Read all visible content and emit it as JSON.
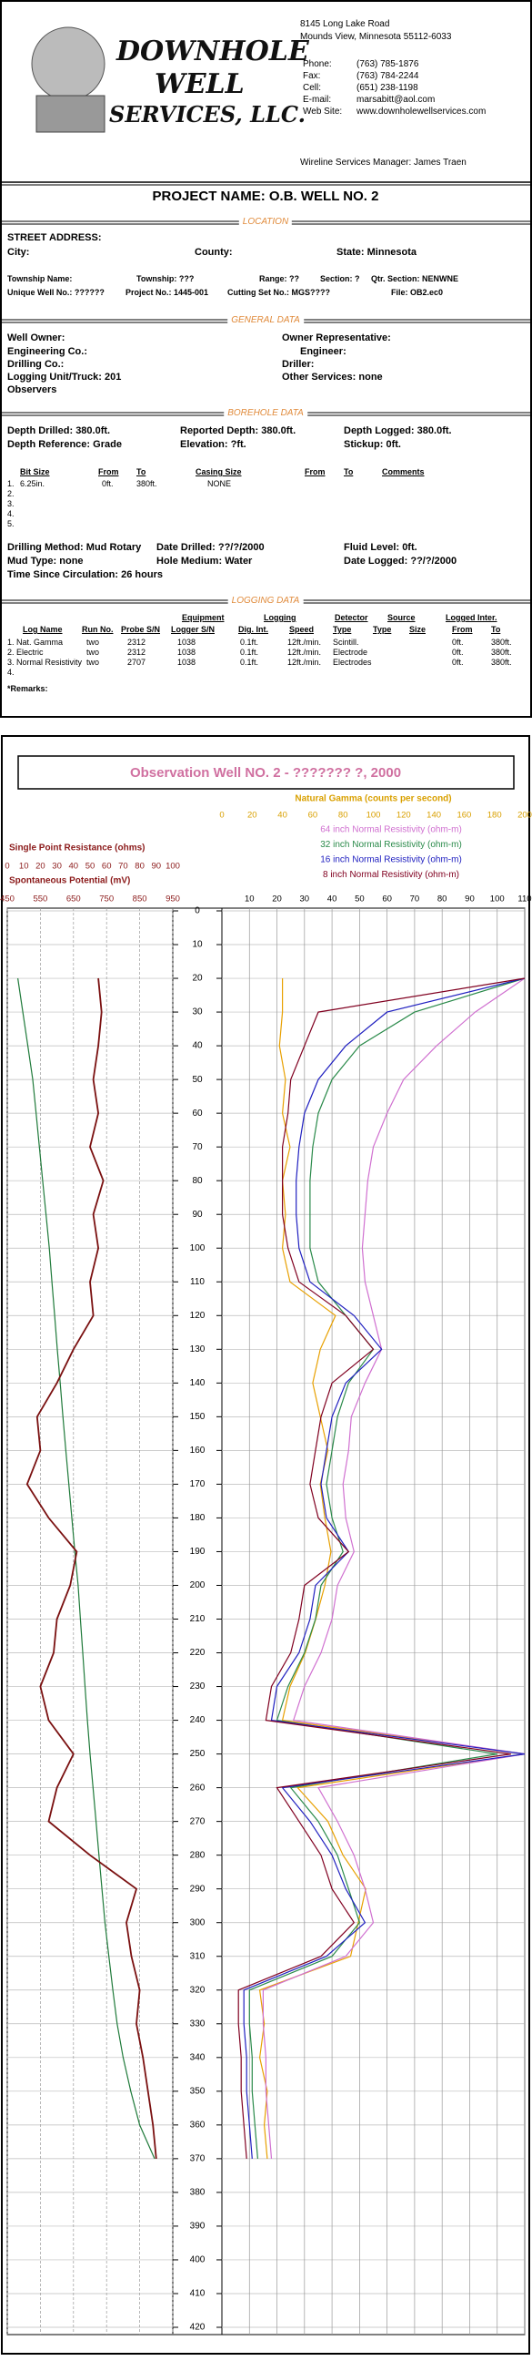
{
  "company": {
    "logo": [
      "DOWNHOLE",
      "WELL",
      "SERVICES, LLC."
    ],
    "address": [
      "8145 Long Lake Road",
      "Mounds View, Minnesota  55112-6033"
    ],
    "contacts": [
      {
        "label": "Phone:",
        "value": "(763) 785-1876"
      },
      {
        "label": "Fax:",
        "value": "(763) 784-2244"
      },
      {
        "label": "Cell:",
        "value": "(651) 238-1198"
      },
      {
        "label": "E-mail:",
        "value": "marsabitt@aol.com"
      },
      {
        "label": "Web Site:",
        "value": "www.downholewellservices.com"
      }
    ],
    "manager": "Wireline Services Manager: James Traen"
  },
  "project": {
    "label": "PROJECT NAME:",
    "value": "O.B. WELL NO. 2"
  },
  "location": {
    "heading": "LOCATION",
    "street": "STREET ADDRESS:",
    "city": "City:",
    "county": "County:",
    "state": {
      "label": "State:",
      "value": "Minnesota"
    },
    "township_name": "Township Name:",
    "township": {
      "label": "Township:",
      "value": "???"
    },
    "range": {
      "label": "Range:",
      "value": "??"
    },
    "section": {
      "label": "Section:",
      "value": "?"
    },
    "qtr_section": {
      "label": "Qtr. Section:",
      "value": "NENWNE"
    },
    "unique_well": {
      "label": "Unique Well No.:",
      "value": "??????"
    },
    "project_no": {
      "label": "Project No.:",
      "value": "1445-001"
    },
    "cutting_set": {
      "label": "Cutting Set No.:",
      "value": "MGS????"
    },
    "file": {
      "label": "File:",
      "value": "OB2.ec0"
    }
  },
  "general": {
    "heading": "GENERAL DATA",
    "owner": "Well Owner:",
    "owner_rep": "Owner Representative:",
    "engineering": "Engineering Co.:",
    "engineer": "Engineer:",
    "drilling": "Drilling Co.:",
    "driller": "Driller:",
    "unit": {
      "label": "Logging Unit/Truck:",
      "value": "201"
    },
    "other": {
      "label": "Other Services:",
      "value": "none"
    },
    "observers": "Observers"
  },
  "borehole": {
    "heading": "BOREHOLE DATA",
    "depth_drilled": {
      "label": "Depth Drilled:",
      "value": "380.0ft."
    },
    "reported_depth": {
      "label": "Reported Depth:",
      "value": "380.0ft."
    },
    "depth_logged": {
      "label": "Depth Logged:",
      "value": "380.0ft."
    },
    "reference": {
      "label": "Depth Reference:",
      "value": "Grade"
    },
    "elevation": {
      "label": "Elevation:",
      "value": "?ft."
    },
    "stickup": {
      "label": "Stickup:",
      "value": "0ft."
    },
    "bit_table": {
      "columns": [
        "Bit Size",
        "From",
        "To",
        "Casing Size",
        "From",
        "To",
        "Comments"
      ],
      "rows": [
        {
          "n": "1.",
          "bit": "6.25in.",
          "from": "0ft.",
          "to": "380ft.",
          "casing": "NONE"
        },
        {
          "n": "2."
        },
        {
          "n": "3."
        },
        {
          "n": "4."
        },
        {
          "n": "5."
        }
      ]
    },
    "method": {
      "label": "Drilling Method:",
      "value": "Mud Rotary"
    },
    "date_drilled": {
      "label": "Date Drilled:",
      "value": "??/?/2000"
    },
    "fluid": {
      "label": "Fluid Level:",
      "value": "0ft."
    },
    "mud": {
      "label": "Mud Type:",
      "value": "none"
    },
    "medium": {
      "label": "Hole Medium:",
      "value": "Water"
    },
    "date_logged": {
      "label": "Date Logged:",
      "value": "??/?/2000"
    },
    "circulation": {
      "label": "Time Since Circulation:",
      "value": "26 hours"
    }
  },
  "logging": {
    "heading": "LOGGING DATA",
    "groups": [
      "Equipment",
      "Logging",
      "Detector",
      "Source",
      "Logged Inter."
    ],
    "columns": [
      "Log Name",
      "Run No.",
      "Probe S/N",
      "Logger S/N",
      "Dig. Int.",
      "Speed",
      "Type",
      "Type",
      "Size",
      "From",
      "To"
    ],
    "rows": [
      {
        "name": "1. Nat. Gamma",
        "run": "two",
        "probe": "2312",
        "logger": "1038",
        "dig": "0.1ft.",
        "speed": "12ft./min.",
        "detector": "Scintill.",
        "from": "0ft.",
        "to": "380ft."
      },
      {
        "name": "2. Electric",
        "run": "two",
        "probe": "2312",
        "logger": "1038",
        "dig": "0.1ft.",
        "speed": "12ft./min.",
        "detector": "Electrode",
        "from": "0ft.",
        "to": "380ft."
      },
      {
        "name": "3. Normal Resistivity",
        "run": "two",
        "probe": "2707",
        "logger": "1038",
        "dig": "0.1ft.",
        "speed": "12ft./min.",
        "detector": "Electrodes",
        "from": "0ft.",
        "to": "380ft."
      },
      {
        "name": "4."
      }
    ],
    "remarks": "*Remarks:"
  },
  "chart_data": {
    "type": "well-log",
    "title": "Observation Well NO. 2 - ??????? ?, 2000",
    "x": [
      20,
      30,
      40,
      50,
      60,
      70,
      80,
      90,
      100,
      110,
      120,
      130,
      140,
      150,
      160,
      170,
      180,
      190,
      200,
      210,
      220,
      230,
      240,
      250,
      260,
      270,
      280,
      290,
      300,
      310,
      320,
      330,
      340,
      350,
      360,
      370,
      380
    ],
    "xlim": [
      0,
      420
    ],
    "xticks": [
      0,
      10,
      20,
      30,
      40,
      50,
      60,
      70,
      80,
      90,
      100,
      110,
      120,
      130,
      140,
      150,
      160,
      170,
      180,
      190,
      200,
      210,
      220,
      230,
      240,
      250,
      260,
      270,
      280,
      290,
      300,
      310,
      320,
      330,
      340,
      350,
      360,
      370,
      380,
      390,
      400,
      410,
      420
    ],
    "grid": true,
    "axes": [
      {
        "label": "Spontaneous Potential (mV)",
        "color": "#8b1a1a",
        "lim": [
          450,
          950
        ],
        "ticks": [
          450,
          550,
          650,
          750,
          850,
          950
        ],
        "track": "left"
      },
      {
        "label": "Single Point Resistance (ohms)",
        "color": "#8b1a1a",
        "lim": [
          0,
          100
        ],
        "ticks": [
          0,
          10,
          20,
          30,
          40,
          50,
          60,
          70,
          80,
          90,
          100
        ],
        "track": "left"
      },
      {
        "label": "Natural Gamma (counts per second)",
        "color": "#d9a000",
        "lim": [
          0,
          200
        ],
        "ticks": [
          0,
          20,
          40,
          60,
          80,
          100,
          120,
          140,
          160,
          180,
          200
        ],
        "track": "right"
      },
      {
        "lim": [
          0,
          110
        ],
        "ticks": [
          10,
          20,
          30,
          40,
          50,
          60,
          70,
          80,
          90,
          100,
          110
        ],
        "track": "right"
      }
    ],
    "series": [
      {
        "axis": 0,
        "color": "#1f7a3a",
        "values": [
          482,
          497,
          512,
          527,
          537,
          547,
          557,
          567,
          577,
          585,
          593,
          601,
          610,
          618,
          627,
          636,
          645,
          654,
          664,
          671,
          678,
          685,
          692,
          700,
          709,
          718,
          727,
          736,
          745,
          757,
          769,
          782,
          800,
          823,
          850,
          895,
          null
        ]
      },
      {
        "axis": 1,
        "color": "#7a1010",
        "values": [
          55,
          57,
          55,
          52,
          55,
          50,
          58,
          52,
          55,
          50,
          52,
          40,
          30,
          18,
          20,
          12,
          25,
          42,
          38,
          30,
          28,
          20,
          25,
          40,
          30,
          25,
          50,
          78,
          72,
          75,
          80,
          78,
          82,
          85,
          88,
          90,
          null
        ]
      },
      {
        "axis": 2,
        "color": "#e8a000",
        "values": [
          40,
          40,
          38,
          42,
          40,
          45,
          40,
          42,
          40,
          45,
          75,
          65,
          60,
          65,
          70,
          65,
          68,
          72,
          68,
          62,
          55,
          45,
          40,
          200,
          50,
          70,
          80,
          95,
          90,
          85,
          25,
          28,
          25,
          30,
          28,
          30,
          null
        ]
      },
      {
        "axis": 3,
        "name": "64 inch Normal Resistivity (ohm-m)",
        "color": "#d070d0",
        "values": [
          110,
          92,
          78,
          66,
          60,
          55,
          53,
          52,
          51,
          52,
          55,
          58,
          52,
          47,
          46,
          44,
          45,
          48,
          42,
          40,
          36,
          30,
          26,
          110,
          35,
          42,
          48,
          52,
          55,
          45,
          15,
          15,
          16,
          16,
          17,
          18,
          null
        ]
      },
      {
        "axis": 3,
        "name": "32 inch Normal Resistivity (ohm-m)",
        "color": "#2a8a4a",
        "values": [
          110,
          70,
          50,
          40,
          35,
          33,
          32,
          32,
          32,
          35,
          45,
          55,
          46,
          42,
          40,
          38,
          40,
          44,
          36,
          34,
          30,
          24,
          20,
          100,
          25,
          35,
          42,
          46,
          50,
          40,
          10,
          10,
          11,
          11,
          12,
          13,
          null
        ]
      },
      {
        "axis": 3,
        "name": "16 inch Normal Resistivity (ohm-m)",
        "color": "#2020c0",
        "values": [
          110,
          60,
          45,
          35,
          30,
          28,
          27,
          27,
          28,
          32,
          48,
          58,
          45,
          40,
          38,
          36,
          38,
          46,
          34,
          32,
          28,
          20,
          18,
          110,
          22,
          32,
          40,
          45,
          52,
          38,
          8,
          8,
          9,
          9,
          10,
          11,
          null
        ]
      },
      {
        "axis": 3,
        "name": "8 inch Normal Resistivity (ohm-m)",
        "color": "#800020",
        "values": [
          110,
          35,
          30,
          25,
          24,
          22,
          22,
          22,
          24,
          28,
          45,
          55,
          40,
          36,
          34,
          32,
          35,
          46,
          30,
          28,
          25,
          18,
          16,
          105,
          20,
          28,
          36,
          40,
          48,
          36,
          6,
          6,
          7,
          7,
          8,
          9,
          null
        ]
      }
    ]
  }
}
